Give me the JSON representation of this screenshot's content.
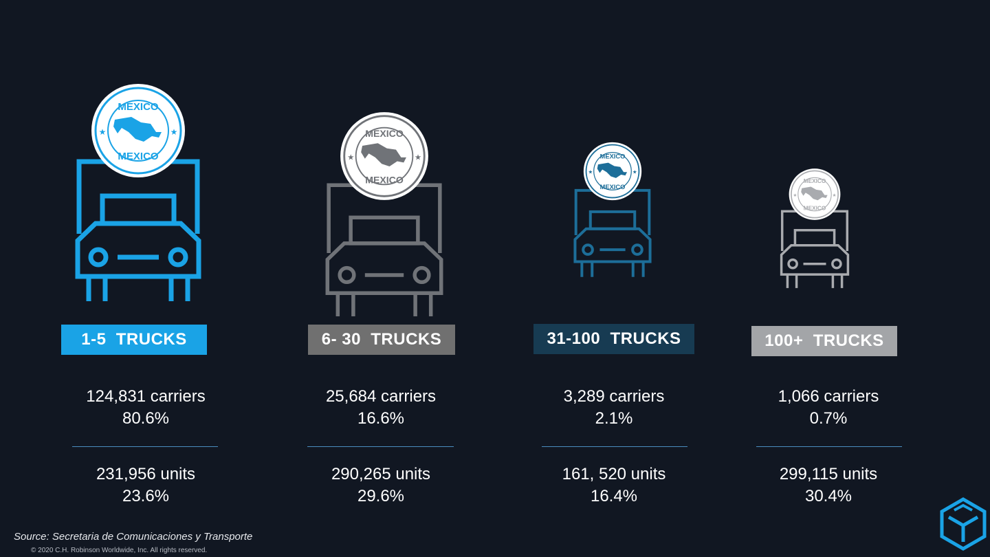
{
  "segments": [
    {
      "label": "1-5  TRUCKS",
      "carriers": "124,831 carriers",
      "carriers_pct": "80.6%",
      "units": "231,956 units",
      "units_pct": "23.6%",
      "truck_color": "#1aa3e6",
      "badge_bg": "#1aa3e6",
      "badge_text_color": "#ffffff",
      "seal_color": "#1aa3e6"
    },
    {
      "label": "6- 30  TRUCKS",
      "carriers": "25,684 carriers",
      "carriers_pct": "16.6%",
      "units": "290,265 units",
      "units_pct": "29.6%",
      "truck_color": "#707378",
      "badge_bg": "#707070",
      "badge_text_color": "#ffffff",
      "seal_color": "#707378"
    },
    {
      "label": "31-100  TRUCKS",
      "carriers": "3,289 carriers",
      "carriers_pct": "2.1%",
      "units": "161, 520 units",
      "units_pct": "16.4%",
      "truck_color": "#1d6e99",
      "badge_bg": "#173b52",
      "badge_text_color": "#ffffff",
      "seal_color": "#1d6e99"
    },
    {
      "label": "100+  TRUCKS",
      "carriers": "1,066 carriers",
      "carriers_pct": "0.7%",
      "units": "299,115 units",
      "units_pct": "30.4%",
      "truck_color": "#a9abaf",
      "badge_bg": "#a3a5a8",
      "badge_text_color": "#ffffff",
      "seal_color": "#a9abaf"
    }
  ],
  "seal_text": "MEXICO",
  "footer": {
    "source": "Source: Secretaria de Comunicaciones y Transporte",
    "copyright": "© 2020 C.H. Robinson Worldwide, Inc. All rights reserved."
  },
  "icons": {
    "truck": "truck-icon",
    "seal": "mexico-seal-icon",
    "logo": "chrobinson-cube-logo"
  }
}
